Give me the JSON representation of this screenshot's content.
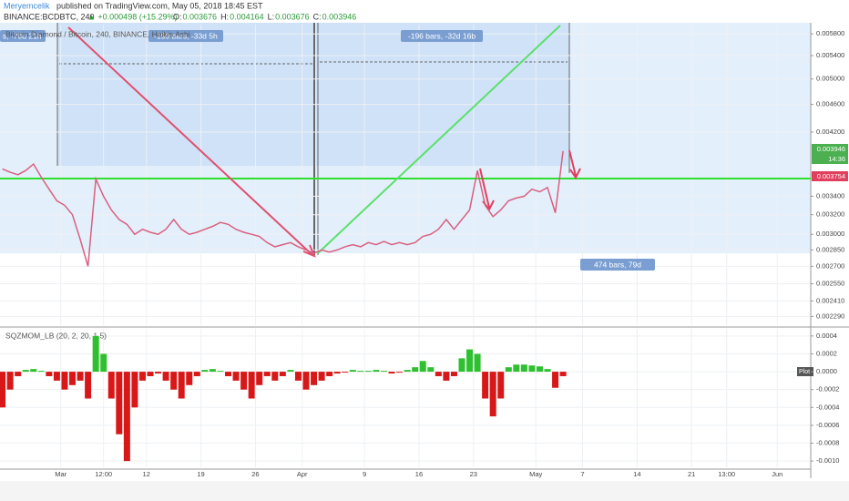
{
  "header": {
    "author": "Meryemcelik",
    "published": "published on TradingView.com, May 05, 2018 18:45 EST",
    "symbol": "BINANCE:BCDBTC, 240",
    "change": "▲ +0.000498 (+15.29%)",
    "ohlc": [
      {
        "key": "O:",
        "value": "0.003676"
      },
      {
        "key": "H:",
        "value": "0.004164"
      },
      {
        "key": "L:",
        "value": "0.003676"
      },
      {
        "key": "C:",
        "value": "0.003946"
      }
    ]
  },
  "annotations": {
    "range_left": "s, -79d 21h",
    "range_mid": "-199 bars, -33d 5h",
    "range_right": "-196 bars, -32d 16b",
    "range_total": "474 bars, 79d",
    "last_price": "0.003946",
    "countdown": "14:36",
    "line_price": "0.003754",
    "plot_badge": "Plot"
  },
  "chart_data": [
    {
      "type": "line",
      "title": "Bitcoin Diamond / Bitcoin, 240, BINANCE, Heikin Ashi",
      "color": "#d9607f",
      "y_scale": "log",
      "grid": true,
      "xlim": [
        52.2,
        156.3
      ],
      "ylim": [
        0.002225,
        0.00598
      ],
      "yticks": [
        {
          "value": 0.0058,
          "label": "0.005800"
        },
        {
          "value": 0.0054,
          "label": "0.005400"
        },
        {
          "value": 0.005,
          "label": "0.005000"
        },
        {
          "value": 0.0046,
          "label": "0.004600"
        },
        {
          "value": 0.0042,
          "label": "0.004200"
        },
        {
          "value": 0.0034,
          "label": "0.003400"
        },
        {
          "value": 0.0032,
          "label": "0.003200"
        },
        {
          "value": 0.003,
          "label": "0.003000"
        },
        {
          "value": 0.00285,
          "label": "0.002850"
        },
        {
          "value": 0.0027,
          "label": "0.002700"
        },
        {
          "value": 0.00255,
          "label": "0.002550"
        },
        {
          "value": 0.00241,
          "label": "0.002410"
        },
        {
          "value": 0.00229,
          "label": "0.002290"
        }
      ],
      "x": [
        52.5,
        53.5,
        54.5,
        55.5,
        56.5,
        57.5,
        58.5,
        59.5,
        60.5,
        61.5,
        62.5,
        63.5,
        64.5,
        65.5,
        66.5,
        67.5,
        68.5,
        69.5,
        70.5,
        71.5,
        72.5,
        73.5,
        74.5,
        75.5,
        76.5,
        77.5,
        78.5,
        79.5,
        80.5,
        81.5,
        82.5,
        83.5,
        84.5,
        85.5,
        86.5,
        87.5,
        88.5,
        89.5,
        90.5,
        91.5,
        92.5,
        93.5,
        94.5,
        95.5,
        96.5,
        97.5,
        98.5,
        99.5,
        100.5,
        101.5,
        102.5,
        103.5,
        104.5,
        105.5,
        106.5,
        107.5,
        108.5,
        109.5,
        110.5,
        111.5,
        112.5,
        113.5,
        114.5,
        115.5,
        116.5,
        117.5,
        118.5,
        119.5,
        120.5,
        121.5,
        122.5,
        123.5,
        124.5
      ],
      "values": [
        0.00372,
        0.00368,
        0.00365,
        0.0037,
        0.00378,
        0.00362,
        0.00348,
        0.00335,
        0.0033,
        0.0032,
        0.00295,
        0.0027,
        0.0036,
        0.0034,
        0.00325,
        0.00315,
        0.0031,
        0.003,
        0.00305,
        0.00302,
        0.003,
        0.00305,
        0.00315,
        0.00305,
        0.003,
        0.00302,
        0.00305,
        0.00308,
        0.00312,
        0.0031,
        0.00305,
        0.00302,
        0.003,
        0.00298,
        0.00292,
        0.00288,
        0.0029,
        0.00292,
        0.00288,
        0.00285,
        0.00282,
        0.00285,
        0.00283,
        0.00285,
        0.00288,
        0.0029,
        0.00288,
        0.00292,
        0.0029,
        0.00293,
        0.0029,
        0.00292,
        0.0029,
        0.00292,
        0.00298,
        0.003,
        0.00305,
        0.00315,
        0.00305,
        0.00315,
        0.00325,
        0.0037,
        0.0033,
        0.00318,
        0.00325,
        0.00335,
        0.00338,
        0.0034,
        0.00348,
        0.00345,
        0.0035,
        0.00322,
        0.003946
      ]
    },
    {
      "type": "bar",
      "title": "SQZMOM_LB (20, 2, 20, 1.5)",
      "positive_color": "#2fc02f",
      "negative_color": "#d81818",
      "grid": true,
      "xlim": [
        52.2,
        156.3
      ],
      "ylim": [
        -0.00107,
        0.00048
      ],
      "xticks": [
        {
          "value": 60,
          "label": "Mar"
        },
        {
          "value": 65.5,
          "label": "12:00"
        },
        {
          "value": 71,
          "label": "12"
        },
        {
          "value": 78,
          "label": "19"
        },
        {
          "value": 85,
          "label": "26"
        },
        {
          "value": 91,
          "label": "Apr"
        },
        {
          "value": 99,
          "label": "9"
        },
        {
          "value": 106,
          "label": "16"
        },
        {
          "value": 113,
          "label": "23"
        },
        {
          "value": 121,
          "label": "May"
        },
        {
          "value": 127,
          "label": "7"
        },
        {
          "value": 134,
          "label": "14"
        },
        {
          "value": 141,
          "label": "21"
        },
        {
          "value": 145.5,
          "label": "13:00"
        },
        {
          "value": 152,
          "label": "Jun"
        }
      ],
      "yticks": [
        {
          "value": 0.0004,
          "label": "0.0004"
        },
        {
          "value": 0.0002,
          "label": "0.0002"
        },
        {
          "value": 0,
          "label": "0.0000"
        },
        {
          "value": -0.0002,
          "label": "-0.0002"
        },
        {
          "value": -0.0004,
          "label": "-0.0004"
        },
        {
          "value": -0.0006,
          "label": "-0.0006"
        },
        {
          "value": -0.0008,
          "label": "-0.0008"
        },
        {
          "value": -0.001,
          "label": "-0.0010"
        }
      ],
      "x": [
        52.5,
        53.5,
        54.5,
        55.5,
        56.5,
        57.5,
        58.5,
        59.5,
        60.5,
        61.5,
        62.5,
        63.5,
        64.5,
        65.5,
        66.5,
        67.5,
        68.5,
        69.5,
        70.5,
        71.5,
        72.5,
        73.5,
        74.5,
        75.5,
        76.5,
        77.5,
        78.5,
        79.5,
        80.5,
        81.5,
        82.5,
        83.5,
        84.5,
        85.5,
        86.5,
        87.5,
        88.5,
        89.5,
        90.5,
        91.5,
        92.5,
        93.5,
        94.5,
        95.5,
        96.5,
        97.5,
        98.5,
        99.5,
        100.5,
        101.5,
        102.5,
        103.5,
        104.5,
        105.5,
        106.5,
        107.5,
        108.5,
        109.5,
        110.5,
        111.5,
        112.5,
        113.5,
        114.5,
        115.5,
        116.5,
        117.5,
        118.5,
        119.5,
        120.5,
        121.5,
        122.5,
        123.5,
        124.5
      ],
      "values": [
        -0.0004,
        -0.0002,
        -5e-05,
        2e-05,
        3e-05,
        1e-05,
        -5e-05,
        -0.0001,
        -0.0002,
        -0.00015,
        -0.0001,
        -0.0003,
        0.0004,
        0.0002,
        -0.0003,
        -0.0007,
        -0.001,
        -0.0004,
        -0.0001,
        -5e-05,
        -2e-05,
        -0.0001,
        -0.0002,
        -0.0003,
        -0.00015,
        -5e-05,
        2e-05,
        3e-05,
        1e-05,
        -5e-05,
        -0.0001,
        -0.0002,
        -0.0003,
        -0.00015,
        -5e-05,
        -0.0001,
        -5e-05,
        2e-05,
        -0.0001,
        -0.0002,
        -0.00015,
        -0.0001,
        -5e-05,
        -2e-05,
        -1e-05,
        2e-05,
        1e-05,
        1e-05,
        2e-05,
        1e-05,
        -2e-05,
        -1e-05,
        2e-05,
        5e-05,
        0.00012,
        5e-05,
        -5e-05,
        -0.0001,
        -5e-05,
        0.00015,
        0.00025,
        0.0002,
        -0.0003,
        -0.0005,
        -0.0003,
        5e-05,
        8e-05,
        8e-05,
        7e-05,
        6e-05,
        3e-05,
        -0.00018,
        -5e-05
      ]
    }
  ]
}
